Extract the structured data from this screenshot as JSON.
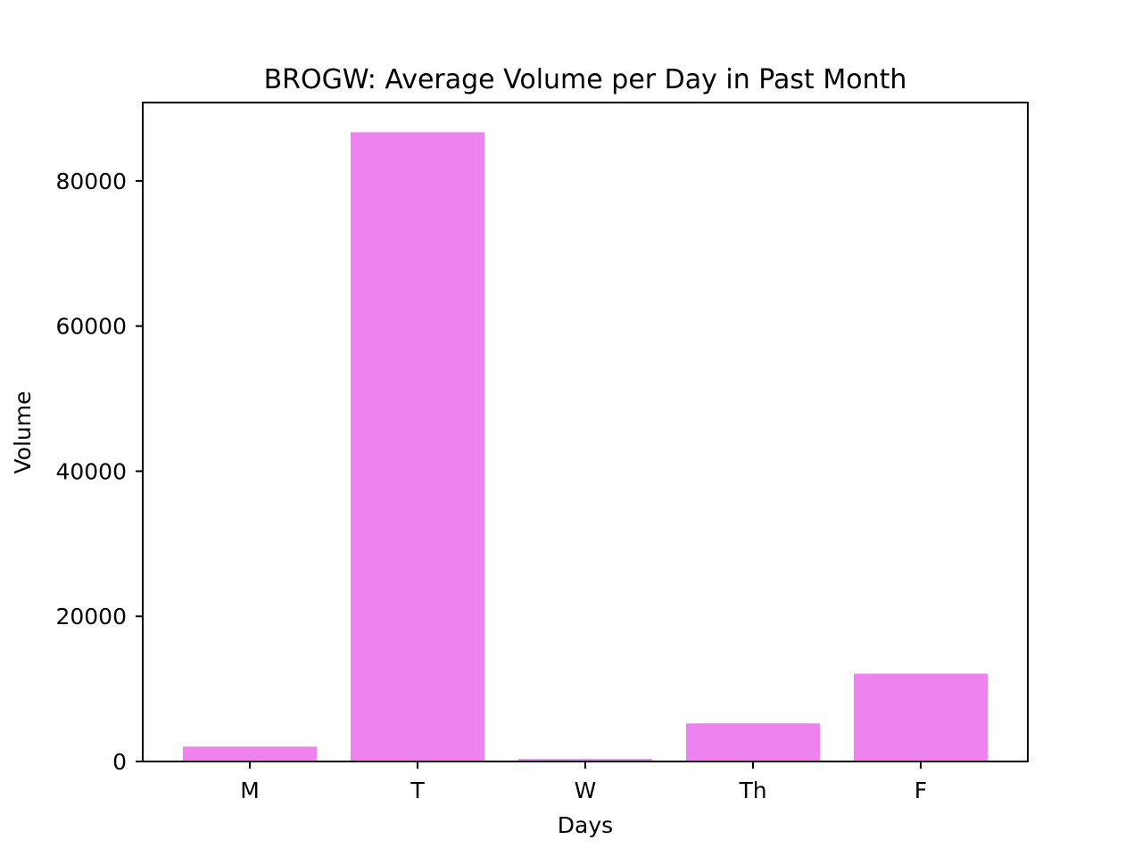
{
  "chart_data": {
    "type": "bar",
    "title": "BROGW: Average Volume per Day in Past Month",
    "xlabel": "Days",
    "ylabel": "Volume",
    "categories": [
      "M",
      "T",
      "W",
      "Th",
      "F"
    ],
    "values": [
      2050,
      86700,
      350,
      5250,
      12100
    ],
    "ylim": [
      0,
      90800
    ],
    "yticks": [
      0,
      20000,
      40000,
      60000,
      80000
    ],
    "grid": false,
    "legend": "none",
    "bar_color": "#ee82ee"
  }
}
